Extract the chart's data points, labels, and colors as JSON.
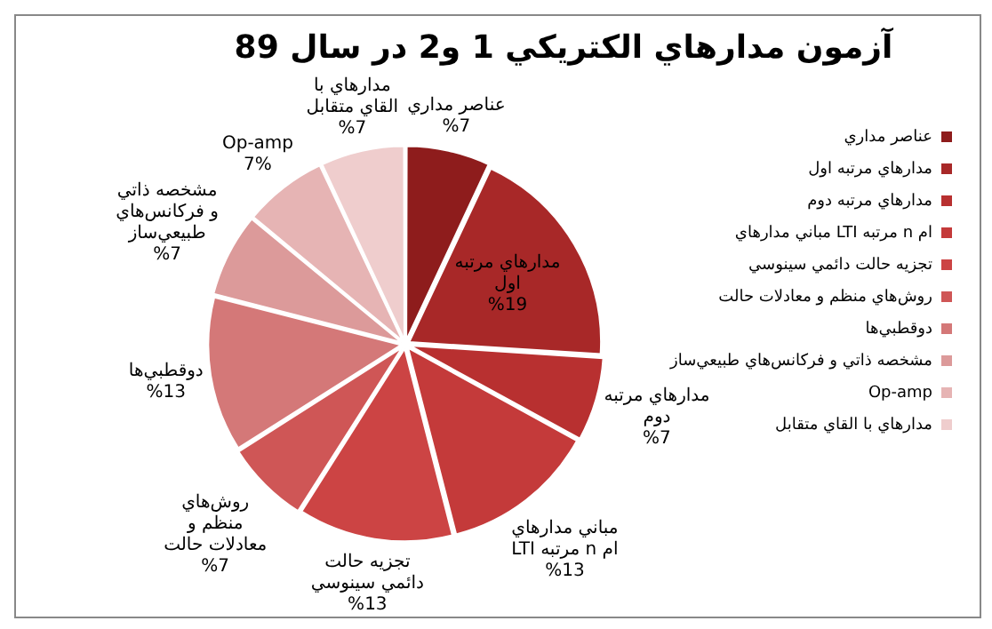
{
  "chart_data": {
    "type": "pie",
    "title": "آزمون مدارهاي الكتريكي 1 و2 در سال 89",
    "categories": [
      "عناصر مداري",
      "مدارهاي مرتبه اول",
      "مدارهاي مرتبه دوم",
      "مباني مدارهاي LTI مرتبه n ام",
      "تجزيه حالت دائمي سينوسي",
      "روش‌هاي منظم و معادلات حالت",
      "دوقطبي‌ها",
      "مشخصه ذاتي و فركانس‌هاي طبيعي‌ساز",
      "Op-amp",
      "مدارهاي با القاي متقابل"
    ],
    "values": [
      7,
      19,
      7,
      13,
      13,
      7,
      13,
      7,
      7,
      7
    ],
    "value_labels": [
      "%7",
      "%19",
      "%7",
      "%13",
      "%13",
      "%7",
      "%13",
      "%7",
      "7%",
      "%7"
    ],
    "colors": [
      "#8e1c1c",
      "#a82828",
      "#b83030",
      "#c43a3a",
      "#cc4444",
      "#cf5656",
      "#d47878",
      "#dc9a9a",
      "#e6b4b4",
      "#efcdcd"
    ],
    "legend": "right"
  }
}
